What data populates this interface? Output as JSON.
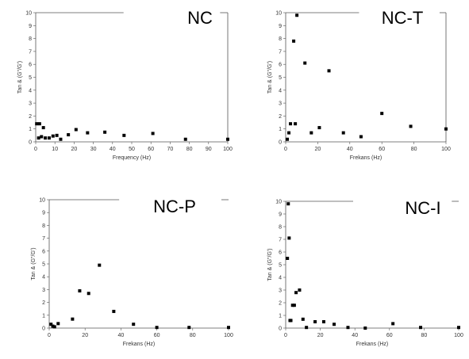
{
  "chart_data": [
    {
      "type": "scatter",
      "title": "NC",
      "xlabel": "Frequency (Hz)",
      "ylabel": "Tan & (G\"/G')",
      "xlim": [
        0,
        100
      ],
      "ylim": [
        0,
        10
      ],
      "xticks": [
        "0",
        "10",
        "20",
        "30",
        "40",
        "50",
        "60",
        "70",
        "80",
        "90",
        "100"
      ],
      "yticks": [
        "0",
        "1",
        "2",
        "3",
        "4",
        "5",
        "6",
        "7",
        "8",
        "9",
        "10"
      ],
      "grid": false,
      "series": [
        {
          "x": [
            0.5,
            1.5,
            2,
            3,
            4,
            5,
            7,
            9,
            11,
            13,
            17,
            21,
            27,
            36,
            46,
            61,
            78,
            100
          ],
          "y": [
            1.4,
            0.3,
            1.4,
            0.4,
            1.1,
            0.3,
            0.3,
            0.45,
            0.5,
            0.2,
            0.55,
            0.95,
            0.7,
            0.75,
            0.5,
            0.65,
            0.2,
            0.2
          ]
        }
      ]
    },
    {
      "type": "scatter",
      "title": "NC-T",
      "xlabel": "Frekans (Hz)",
      "ylabel": "Tan & (G\"/G')",
      "xlim": [
        0,
        100
      ],
      "ylim": [
        0,
        10
      ],
      "xticks": [
        "0",
        "20",
        "40",
        "60",
        "80",
        "100"
      ],
      "yticks": [
        "0",
        "1",
        "2",
        "3",
        "4",
        "5",
        "6",
        "7",
        "8",
        "9",
        "10"
      ],
      "grid": false,
      "series": [
        {
          "x": [
            1,
            2,
            3,
            5,
            6,
            7,
            12,
            16,
            21,
            27,
            36,
            47,
            60,
            78,
            100
          ],
          "y": [
            0.2,
            0.7,
            1.4,
            7.8,
            1.4,
            9.8,
            6.1,
            0.7,
            1.1,
            5.5,
            0.7,
            0.4,
            2.2,
            1.2,
            1.0
          ]
        }
      ]
    },
    {
      "type": "scatter",
      "title": "NC-P",
      "xlabel": "Frekans (Hz)",
      "ylabel": "Tan & (G\"/G')",
      "xlim": [
        0,
        100
      ],
      "ylim": [
        0,
        10
      ],
      "xticks": [
        "0",
        "20",
        "40",
        "60",
        "80",
        "100"
      ],
      "yticks": [
        "0",
        "1",
        "2",
        "3",
        "4",
        "5",
        "6",
        "7",
        "8",
        "9",
        "10"
      ],
      "grid": false,
      "series": [
        {
          "x": [
            1,
            2,
            3,
            5,
            13,
            17,
            22,
            28,
            36,
            47,
            60,
            78,
            100
          ],
          "y": [
            0.3,
            0.15,
            0.1,
            0.35,
            0.7,
            2.9,
            2.7,
            4.9,
            1.3,
            0.3,
            0.05,
            0.05,
            0.05
          ]
        }
      ]
    },
    {
      "type": "scatter",
      "title": "NC-I",
      "xlabel": "Frekans (Hz)",
      "ylabel": "Tan & (G\"/G')",
      "xlim": [
        0,
        100
      ],
      "ylim": [
        0,
        10
      ],
      "xticks": [
        "0",
        "20",
        "40",
        "60",
        "80",
        "100"
      ],
      "yticks": [
        "0",
        "1",
        "2",
        "3",
        "4",
        "5",
        "6",
        "7",
        "8",
        "9",
        "10"
      ],
      "grid": false,
      "series": [
        {
          "x": [
            1,
            1.5,
            2,
            2.5,
            3,
            4,
            5,
            6,
            8,
            10,
            12,
            17,
            22,
            28,
            36,
            46,
            62,
            78,
            100
          ],
          "y": [
            5.5,
            9.8,
            7.1,
            0.6,
            0.6,
            1.8,
            1.8,
            2.8,
            3.0,
            0.7,
            0.05,
            0.5,
            0.5,
            0.3,
            0.05,
            0.0,
            0.35,
            0.05,
            0.05
          ]
        }
      ]
    }
  ]
}
